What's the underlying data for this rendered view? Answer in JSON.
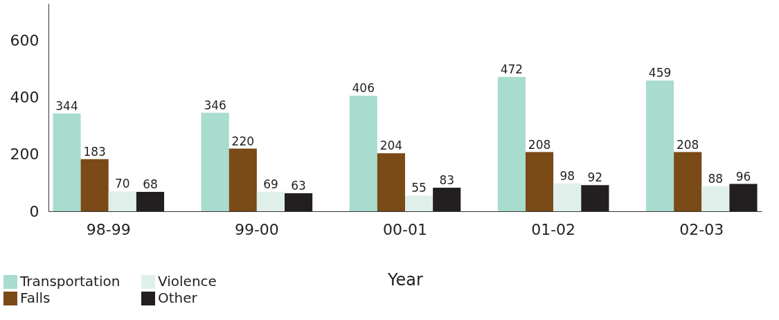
{
  "chart_data": {
    "type": "bar",
    "xlabel": "Year",
    "categories": [
      "98-99",
      "99-00",
      "00-01",
      "01-02",
      "02-03"
    ],
    "series": [
      {
        "name": "Transportation",
        "color": "#a8dccf",
        "values": [
          344,
          346,
          406,
          472,
          459
        ]
      },
      {
        "name": "Falls",
        "color": "#7a4a17",
        "values": [
          183,
          220,
          204,
          208,
          208
        ]
      },
      {
        "name": "Violence",
        "color": "#dff0ea",
        "values": [
          70,
          69,
          55,
          98,
          88
        ]
      },
      {
        "name": "Other",
        "color": "#231f20",
        "values": [
          68,
          63,
          83,
          92,
          96
        ]
      }
    ],
    "ylim": [
      0,
      730
    ],
    "yticks": [
      0,
      200,
      400,
      600
    ],
    "data_labels": true,
    "grid": false,
    "legend": "bottom left"
  }
}
